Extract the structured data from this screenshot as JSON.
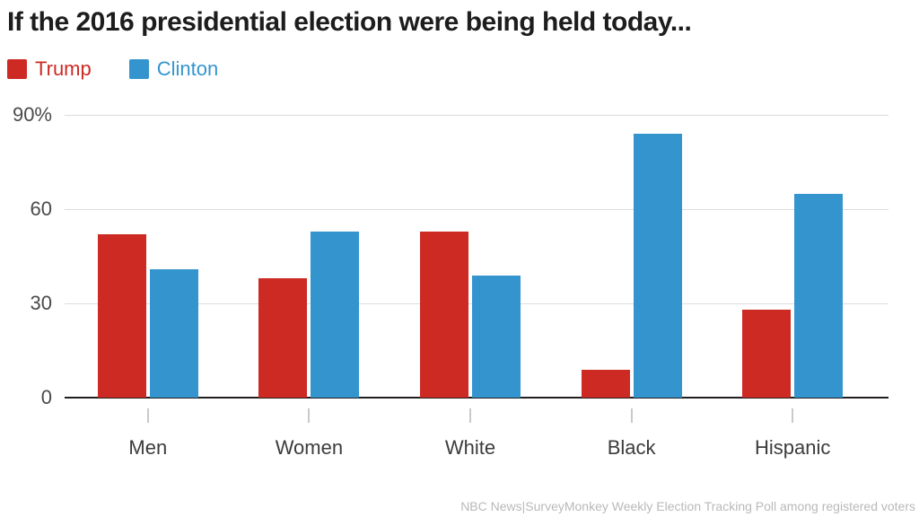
{
  "title": "If the 2016 presidential election were being held today...",
  "source": "NBC News|SurveyMonkey Weekly Election Tracking Poll among registered voters",
  "colors": {
    "trump": "#cc2a23",
    "clinton": "#3495ce",
    "axis": "#231f20",
    "grid": "#dcdcdc"
  },
  "chart_data": {
    "type": "bar",
    "title": "If the 2016 presidential election were being held today...",
    "categories": [
      "Men",
      "Women",
      "White",
      "Black",
      "Hispanic"
    ],
    "series": [
      {
        "name": "Trump",
        "color": "#cc2a23",
        "values": [
          52,
          38,
          53,
          9,
          28
        ]
      },
      {
        "name": "Clinton",
        "color": "#3495ce",
        "values": [
          41,
          53,
          39,
          84,
          65
        ]
      }
    ],
    "xlabel": "",
    "ylabel": "",
    "ylim": [
      0,
      90
    ],
    "yticks": [
      0,
      30,
      60,
      90
    ],
    "ytick_labels": [
      "0",
      "30",
      "60",
      "90%"
    ],
    "grid": true,
    "legend_position": "top-left",
    "source": "NBC News|SurveyMonkey Weekly Election Tracking Poll among registered voters"
  }
}
